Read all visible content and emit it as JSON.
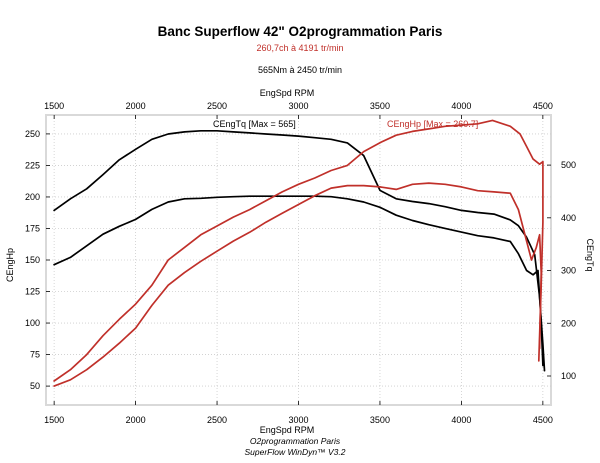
{
  "header": {
    "title": "Banc Superflow 42\" O2programmation Paris",
    "subtitle_power": "260,7ch à 4191 tr/min",
    "subtitle_torque": "565Nm à 2450 tr/min"
  },
  "footer": {
    "line1": "O2programmation Paris",
    "line2": "SuperFlow WinDyn™ V3.2"
  },
  "colors": {
    "power": "#c0302a",
    "torque": "#000000",
    "frame": "#d9d9d9"
  },
  "chart_data": {
    "type": "line",
    "x_axis": {
      "label": "EngSpd RPM",
      "range": [
        1450,
        4550
      ],
      "ticks": [
        "1500",
        "2000",
        "2500",
        "3000",
        "3500",
        "4000",
        "4500"
      ]
    },
    "y_left": {
      "label": "CEngHp",
      "range": [
        35,
        265
      ],
      "ticks": [
        "50",
        "75",
        "100",
        "125",
        "150",
        "175",
        "200",
        "225",
        "250"
      ]
    },
    "y_right": {
      "label": "CEngTq",
      "range": [
        45,
        595
      ],
      "ticks": [
        "100",
        "200",
        "300",
        "400",
        "500"
      ]
    },
    "legend": [
      {
        "text": "CEngTq [Max = 565]",
        "color": "#000000",
        "position": "top-left"
      },
      {
        "text": "CEngHp [Max = 260.7]",
        "color": "#c0302a",
        "position": "top-right"
      }
    ],
    "series": [
      {
        "name": "CEngTq",
        "axis": "right",
        "color": "#000000",
        "points": [
          [
            1500,
            414
          ],
          [
            1600,
            436
          ],
          [
            1700,
            455
          ],
          [
            1800,
            482
          ],
          [
            1900,
            510
          ],
          [
            2000,
            530
          ],
          [
            2100,
            549
          ],
          [
            2200,
            559
          ],
          [
            2300,
            563
          ],
          [
            2400,
            565
          ],
          [
            2500,
            565
          ],
          [
            2600,
            563
          ],
          [
            2700,
            561
          ],
          [
            2800,
            559
          ],
          [
            2900,
            557
          ],
          [
            3000,
            555
          ],
          [
            3100,
            552
          ],
          [
            3200,
            549
          ],
          [
            3300,
            542
          ],
          [
            3400,
            518
          ],
          [
            3500,
            452
          ],
          [
            3600,
            436
          ],
          [
            3700,
            431
          ],
          [
            3800,
            427
          ],
          [
            3900,
            421
          ],
          [
            4000,
            414
          ],
          [
            4100,
            410
          ],
          [
            4200,
            407
          ],
          [
            4300,
            396
          ],
          [
            4350,
            385
          ],
          [
            4400,
            363
          ],
          [
            4450,
            330
          ],
          [
            4480,
            250
          ],
          [
            4500,
            160
          ],
          [
            4510,
            110
          ]
        ]
      },
      {
        "name": "CEngTq",
        "axis": "right",
        "color": "#000000",
        "points": [
          [
            1500,
            311
          ],
          [
            1600,
            325
          ],
          [
            1700,
            347
          ],
          [
            1800,
            369
          ],
          [
            1900,
            384
          ],
          [
            2000,
            397
          ],
          [
            2100,
            416
          ],
          [
            2200,
            430
          ],
          [
            2300,
            436
          ],
          [
            2400,
            437
          ],
          [
            2500,
            439
          ],
          [
            2600,
            440
          ],
          [
            2700,
            441
          ],
          [
            2800,
            441
          ],
          [
            2900,
            441
          ],
          [
            3000,
            441
          ],
          [
            3100,
            441
          ],
          [
            3200,
            440
          ],
          [
            3300,
            436
          ],
          [
            3400,
            430
          ],
          [
            3500,
            420
          ],
          [
            3600,
            405
          ],
          [
            3700,
            395
          ],
          [
            3800,
            387
          ],
          [
            3900,
            380
          ],
          [
            4000,
            373
          ],
          [
            4100,
            366
          ],
          [
            4200,
            362
          ],
          [
            4300,
            355
          ],
          [
            4350,
            332
          ],
          [
            4400,
            300
          ],
          [
            4440,
            292
          ],
          [
            4470,
            300
          ],
          [
            4490,
            200
          ],
          [
            4500,
            120
          ]
        ]
      },
      {
        "name": "CEngHp",
        "axis": "left",
        "color": "#c0302a",
        "points": [
          [
            1500,
            54
          ],
          [
            1600,
            63
          ],
          [
            1700,
            75
          ],
          [
            1800,
            90
          ],
          [
            1900,
            103
          ],
          [
            2000,
            115
          ],
          [
            2100,
            130
          ],
          [
            2200,
            150
          ],
          [
            2300,
            160
          ],
          [
            2400,
            170
          ],
          [
            2500,
            177
          ],
          [
            2600,
            184
          ],
          [
            2700,
            190
          ],
          [
            2800,
            197
          ],
          [
            2900,
            204
          ],
          [
            3000,
            210
          ],
          [
            3100,
            215
          ],
          [
            3200,
            221
          ],
          [
            3300,
            225
          ],
          [
            3400,
            236
          ],
          [
            3500,
            243
          ],
          [
            3600,
            249
          ],
          [
            3700,
            252
          ],
          [
            3800,
            254
          ],
          [
            3900,
            256
          ],
          [
            4000,
            257
          ],
          [
            4100,
            258
          ],
          [
            4191,
            260.7
          ],
          [
            4300,
            256
          ],
          [
            4360,
            250
          ],
          [
            4400,
            240
          ],
          [
            4440,
            230
          ],
          [
            4480,
            226
          ],
          [
            4500,
            228
          ],
          [
            4500,
            180
          ],
          [
            4490,
            130
          ],
          [
            4475,
            70
          ]
        ]
      },
      {
        "name": "CEngHp",
        "axis": "left",
        "color": "#c0302a",
        "points": [
          [
            1500,
            50
          ],
          [
            1600,
            55
          ],
          [
            1700,
            63
          ],
          [
            1800,
            73
          ],
          [
            1900,
            84
          ],
          [
            2000,
            96
          ],
          [
            2100,
            114
          ],
          [
            2200,
            130
          ],
          [
            2300,
            140
          ],
          [
            2400,
            149
          ],
          [
            2500,
            157
          ],
          [
            2600,
            165
          ],
          [
            2700,
            172
          ],
          [
            2800,
            180
          ],
          [
            2900,
            187
          ],
          [
            3000,
            194
          ],
          [
            3100,
            201
          ],
          [
            3200,
            207
          ],
          [
            3300,
            209
          ],
          [
            3400,
            209
          ],
          [
            3500,
            208
          ],
          [
            3600,
            206
          ],
          [
            3700,
            210
          ],
          [
            3800,
            211
          ],
          [
            3900,
            210
          ],
          [
            4000,
            208
          ],
          [
            4100,
            205
          ],
          [
            4200,
            204
          ],
          [
            4300,
            203
          ],
          [
            4350,
            190
          ],
          [
            4400,
            165
          ],
          [
            4430,
            150
          ],
          [
            4460,
            160
          ],
          [
            4480,
            170
          ],
          [
            4490,
            140
          ],
          [
            4480,
            80
          ]
        ]
      }
    ]
  }
}
